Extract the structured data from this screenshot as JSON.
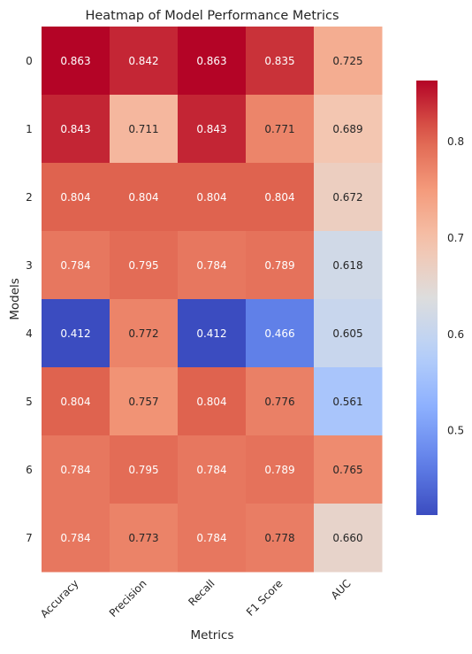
{
  "chart_data": {
    "type": "heatmap",
    "title": "Heatmap of Model Performance Metrics",
    "xlabel": "Metrics",
    "ylabel": "Models",
    "columns": [
      "Accuracy",
      "Precision",
      "Recall",
      "F1 Score",
      "AUC"
    ],
    "rows": [
      "0",
      "1",
      "2",
      "3",
      "4",
      "5",
      "6",
      "7"
    ],
    "values": [
      [
        0.863,
        0.842,
        0.863,
        0.835,
        0.725
      ],
      [
        0.843,
        0.711,
        0.843,
        0.771,
        0.689
      ],
      [
        0.804,
        0.804,
        0.804,
        0.804,
        0.672
      ],
      [
        0.784,
        0.795,
        0.784,
        0.789,
        0.618
      ],
      [
        0.412,
        0.772,
        0.412,
        0.466,
        0.605
      ],
      [
        0.804,
        0.757,
        0.804,
        0.776,
        0.561
      ],
      [
        0.784,
        0.795,
        0.784,
        0.789,
        0.765
      ],
      [
        0.784,
        0.773,
        0.784,
        0.778,
        0.66
      ]
    ],
    "annotation_format": "0.000",
    "colormap": "coolwarm",
    "vmin": 0.412,
    "vmax": 0.863,
    "colorbar": {
      "ticks": [
        0.5,
        0.6,
        0.7,
        0.8
      ],
      "tick_labels": [
        "0.5",
        "0.6",
        "0.7",
        "0.8"
      ]
    },
    "tick_label_rotation_x": 45,
    "grid": false,
    "colors": {
      "low": "#3b4cc0",
      "mid": "#dddcdc",
      "high": "#b40426",
      "text_light": "#ffffff",
      "text_dark": "#262626"
    }
  }
}
